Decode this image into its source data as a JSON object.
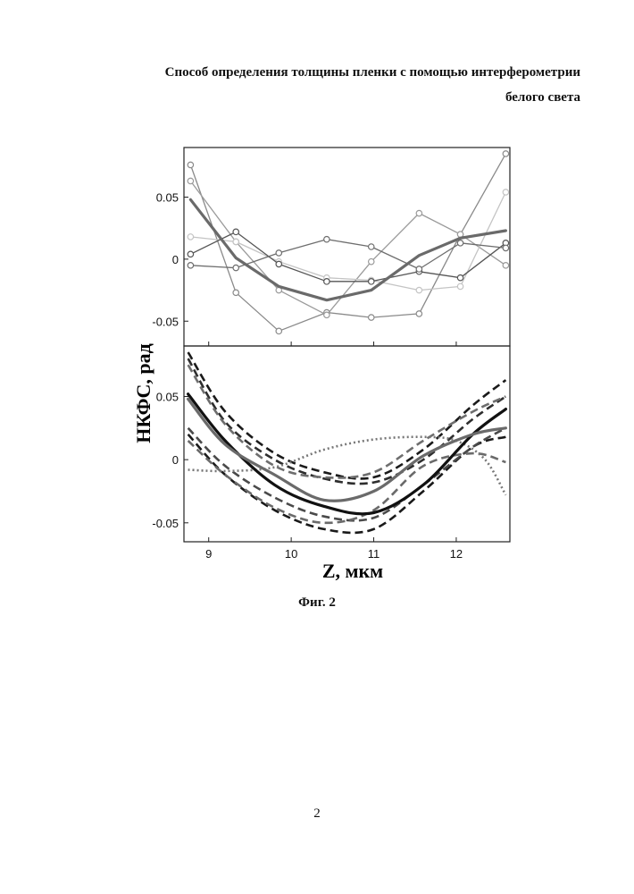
{
  "document": {
    "title_line1": "Способ определения толщины пленки с помощью интерферометрии",
    "title_line2": "белого света",
    "caption": "Фиг. 2",
    "page_number": "2"
  },
  "chart_data": [
    {
      "type": "line",
      "panel": "top",
      "ylabel": "НКФС, рад",
      "xlim": [
        8.7,
        12.65
      ],
      "ylim": [
        -0.07,
        0.09
      ],
      "yticks": [
        0.05,
        0,
        -0.05
      ],
      "ytick_labels": [
        "0.05",
        "0",
        "-0.05"
      ],
      "markers": "open circle",
      "series": [
        {
          "color": "#8a8a8a",
          "x": [
            8.78,
            9.33,
            9.85,
            10.43,
            10.97,
            11.55,
            12.05,
            12.6
          ],
          "values": [
            0.076,
            -0.027,
            -0.058,
            -0.043,
            -0.047,
            -0.044,
            0.02,
            0.085
          ]
        },
        {
          "color": "#9a9a9a",
          "x": [
            8.78,
            9.33,
            9.85,
            10.43,
            10.97,
            11.55,
            12.05,
            12.6
          ],
          "values": [
            0.063,
            0.014,
            -0.025,
            -0.045,
            -0.002,
            0.037,
            0.02,
            -0.005
          ]
        },
        {
          "color": "#c4c4c4",
          "x": [
            8.78,
            9.33,
            9.85,
            10.43,
            10.97,
            11.55,
            12.05,
            12.6
          ],
          "values": [
            0.018,
            0.014,
            -0.002,
            -0.015,
            -0.017,
            -0.025,
            -0.022,
            0.054
          ]
        },
        {
          "color": "#555555",
          "x": [
            8.78,
            9.33,
            9.85,
            10.43,
            10.97,
            11.55,
            12.05,
            12.6
          ],
          "values": [
            0.004,
            0.022,
            -0.004,
            -0.018,
            -0.018,
            -0.01,
            -0.015,
            0.013
          ]
        },
        {
          "color": "#6e6e6e",
          "x": [
            8.78,
            9.33,
            9.85,
            10.43,
            10.97,
            11.55,
            12.05,
            12.6
          ],
          "values": [
            -0.005,
            -0.007,
            0.005,
            0.016,
            0.01,
            -0.008,
            0.013,
            0.009
          ]
        },
        {
          "color": "#6a6a6a",
          "thick": true,
          "x": [
            8.78,
            9.33,
            9.85,
            10.43,
            10.97,
            11.55,
            12.05,
            12.6
          ],
          "values": [
            0.048,
            0.001,
            -0.022,
            -0.033,
            -0.025,
            0.003,
            0.017,
            0.023
          ]
        }
      ]
    },
    {
      "type": "line",
      "panel": "bottom",
      "xlabel": "Z, мкм",
      "xlim": [
        8.7,
        12.65
      ],
      "ylim": [
        -0.065,
        0.09
      ],
      "xticks": [
        9,
        10,
        11,
        12
      ],
      "xtick_labels": [
        "9",
        "10",
        "11",
        "12"
      ],
      "yticks": [
        0.05,
        0,
        -0.05
      ],
      "ytick_labels": [
        "0.05",
        "0",
        "-0.05"
      ],
      "series": [
        {
          "style": "dash",
          "color": "#1a1a1a",
          "x": [
            8.75,
            9.2,
            9.8,
            10.4,
            11.0,
            11.6,
            12.2,
            12.6
          ],
          "values": [
            0.085,
            0.038,
            0.005,
            -0.01,
            -0.014,
            0.008,
            0.043,
            0.063
          ]
        },
        {
          "style": "dash",
          "color": "#2e2e2e",
          "x": [
            8.75,
            9.2,
            9.8,
            10.4,
            11.0,
            11.6,
            12.2,
            12.6
          ],
          "values": [
            0.08,
            0.03,
            0.0,
            -0.015,
            -0.018,
            0.0,
            0.032,
            0.05
          ]
        },
        {
          "style": "dash",
          "color": "#6e6e6e",
          "x": [
            8.75,
            9.2,
            9.8,
            10.4,
            11.0,
            11.6,
            12.2,
            12.6
          ],
          "values": [
            0.075,
            0.028,
            -0.005,
            -0.014,
            -0.01,
            0.015,
            0.038,
            0.05
          ]
        },
        {
          "style": "dash",
          "color": "#1a1a1a",
          "x": [
            8.75,
            9.2,
            9.8,
            10.4,
            11.0,
            11.6,
            12.2,
            12.6
          ],
          "values": [
            0.02,
            -0.012,
            -0.04,
            -0.055,
            -0.055,
            -0.025,
            0.01,
            0.018
          ]
        },
        {
          "style": "dash",
          "color": "#4a4a4a",
          "x": [
            8.75,
            9.2,
            9.8,
            10.4,
            11.0,
            11.6,
            12.2,
            12.6
          ],
          "values": [
            0.025,
            -0.005,
            -0.03,
            -0.045,
            -0.046,
            -0.02,
            0.01,
            0.025
          ]
        },
        {
          "style": "dash",
          "color": "#6a6a6a",
          "x": [
            8.75,
            9.2,
            9.8,
            10.4,
            11.0,
            11.6,
            12.2,
            12.6
          ],
          "values": [
            0.015,
            -0.012,
            -0.038,
            -0.05,
            -0.04,
            -0.005,
            0.005,
            -0.002
          ]
        },
        {
          "style": "dot",
          "color": "#777777",
          "x": [
            8.75,
            9.2,
            9.8,
            10.4,
            11.0,
            11.6,
            12.0,
            12.35,
            12.6
          ],
          "values": [
            -0.008,
            -0.009,
            -0.006,
            0.008,
            0.016,
            0.018,
            0.015,
            0.0,
            -0.028
          ]
        },
        {
          "style": "solid",
          "color": "#111111",
          "thick": true,
          "x": [
            8.75,
            9.2,
            9.8,
            10.4,
            11.0,
            11.6,
            12.2,
            12.6
          ],
          "values": [
            0.052,
            0.015,
            -0.02,
            -0.037,
            -0.042,
            -0.02,
            0.02,
            0.04
          ]
        },
        {
          "style": "solid",
          "color": "#6a6a6a",
          "thick": true,
          "x": [
            8.75,
            9.2,
            9.8,
            10.4,
            11.0,
            11.6,
            12.2,
            12.6
          ],
          "values": [
            0.048,
            0.012,
            -0.012,
            -0.032,
            -0.025,
            0.003,
            0.02,
            0.025
          ]
        }
      ]
    }
  ]
}
